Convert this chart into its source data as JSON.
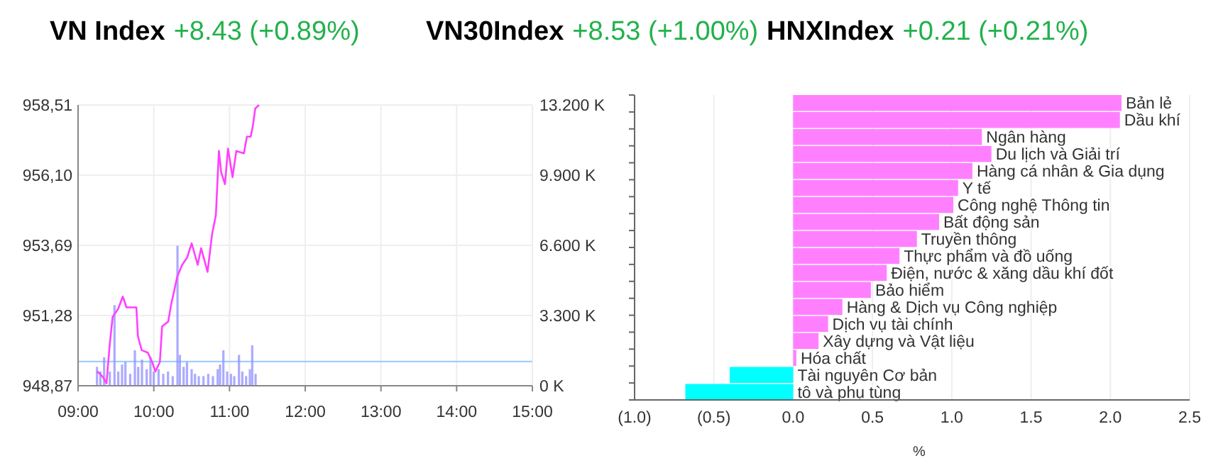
{
  "chart_data": [
    {
      "type": "other",
      "annotations": [
        "VN Index",
        "+8.43 (+0.89%)",
        "VN30Index",
        "+8.53 (+1.00%)",
        "HNXIndex",
        "+0.21 (+0.21%)"
      ]
    },
    {
      "type": "line",
      "grid": true,
      "xlim": [
        9,
        15
      ],
      "xticks": [
        {
          "value": 9,
          "label": "09:00"
        },
        {
          "value": 10,
          "label": "10:00"
        },
        {
          "value": 11,
          "label": "11:00"
        },
        {
          "value": 12,
          "label": "12:00"
        },
        {
          "value": 13,
          "label": "13:00"
        },
        {
          "value": 14,
          "label": "14:00"
        },
        {
          "value": 15,
          "label": "15:00"
        }
      ],
      "ylim": [
        948.87,
        958.51
      ],
      "yticks": [
        {
          "value": 948.87,
          "label": "948,87"
        },
        {
          "value": 951.28,
          "label": "951,28"
        },
        {
          "value": 953.69,
          "label": "953,69"
        },
        {
          "value": 956.1,
          "label": "956,10"
        },
        {
          "value": 958.51,
          "label": "958,51"
        }
      ],
      "y2lim": [
        0,
        13200
      ],
      "y2ticks": [
        {
          "value": 0,
          "label": "0 K"
        },
        {
          "value": 3300,
          "label": "3.300 K"
        },
        {
          "value": 6600,
          "label": "6.600 K"
        },
        {
          "value": 9900,
          "label": "9.900 K"
        },
        {
          "value": 13200,
          "label": "13.200 K"
        }
      ],
      "ref_lines": [
        {
          "axis": "y",
          "value": 949.7,
          "color": "#9fd0ff"
        }
      ],
      "series": [
        {
          "type": "bar",
          "axis": "y2",
          "color": "#8f8fff",
          "x": [
            9.25,
            9.294,
            9.344,
            9.419,
            9.481,
            9.531,
            9.581,
            9.625,
            9.688,
            9.75,
            9.794,
            9.844,
            9.906,
            9.956,
            10.0,
            10.063,
            10.125,
            10.188,
            10.25,
            10.313,
            10.344,
            10.394,
            10.438,
            10.5,
            10.544,
            10.594,
            10.656,
            10.719,
            10.781,
            10.844,
            10.875,
            10.919,
            10.969,
            11.019,
            11.063,
            11.125,
            11.169,
            11.219,
            11.269,
            11.3,
            11.344
          ],
          "values": [
            890,
            670,
            1340,
            670,
            3790,
            670,
            1000,
            1120,
            560,
            1670,
            890,
            1230,
            780,
            1340,
            670,
            780,
            560,
            670,
            450,
            6580,
            1450,
            890,
            1120,
            780,
            560,
            450,
            450,
            560,
            450,
            780,
            1000,
            1670,
            670,
            560,
            450,
            1450,
            670,
            450,
            780,
            1900,
            560
          ]
        },
        {
          "type": "line",
          "axis": "y",
          "color": "#ff40ff",
          "x": [
            9.25,
            9.29,
            9.33,
            9.375,
            9.42,
            9.456,
            9.53,
            9.59,
            9.64,
            9.77,
            9.79,
            9.84,
            9.92,
            9.98,
            10.02,
            10.08,
            10.11,
            10.19,
            10.23,
            10.31,
            10.375,
            10.44,
            10.5,
            10.58,
            10.625,
            10.71,
            10.77,
            10.82,
            10.86,
            10.89,
            10.94,
            10.98,
            11.04,
            11.09,
            11.19,
            11.23,
            11.28,
            11.31,
            11.34,
            11.39
          ],
          "values": [
            949.36,
            949.28,
            949.16,
            948.95,
            950.34,
            951.23,
            951.51,
            951.93,
            951.56,
            951.56,
            950.58,
            950.09,
            950.01,
            949.68,
            949.36,
            949.68,
            950.91,
            951.07,
            951.67,
            952.62,
            953.02,
            953.27,
            953.76,
            953.02,
            953.59,
            952.78,
            954.08,
            954.73,
            956.93,
            956.2,
            955.79,
            957.01,
            956.03,
            956.93,
            956.85,
            957.42,
            957.42,
            957.82,
            958.39,
            958.51
          ]
        }
      ]
    },
    {
      "type": "bar",
      "orientation": "horizontal",
      "grid": "x",
      "xlabel": "%",
      "xlim": [
        -1.0,
        2.5
      ],
      "xticks": [
        {
          "value": -1,
          "label": "(1.0)"
        },
        {
          "value": -0.5,
          "label": "(0.5)"
        },
        {
          "value": 0,
          "label": "0.0"
        },
        {
          "value": 0.5,
          "label": "0.5"
        },
        {
          "value": 1,
          "label": "1.0"
        },
        {
          "value": 1.5,
          "label": "1.5"
        },
        {
          "value": 2,
          "label": "2.0"
        },
        {
          "value": 2.5,
          "label": "2.5"
        }
      ],
      "categories": [
        "Bản lẻ",
        "Dầu khí",
        "Ngân hàng",
        "Du lịch và Giải trí",
        "Hàng cá nhân & Gia dụng",
        "Y tế",
        "Công nghệ Thông tin",
        "Bất động sản",
        "Truyền thông",
        "Thực phẩm và đồ uống",
        "Điện, nước & xăng dầu khí đốt",
        "Bảo hiểm",
        "Hàng & Dịch vụ Công nghiệp",
        "Dịch vụ tài chính",
        "Xây dựng và Vật liệu",
        "Hóa chất",
        "Tài nguyên Cơ bản",
        "tô và phụ tùng"
      ],
      "values": [
        2.07,
        2.06,
        1.19,
        1.25,
        1.13,
        1.04,
        1.01,
        0.92,
        0.78,
        0.67,
        0.59,
        0.49,
        0.31,
        0.22,
        0.16,
        0.02,
        -0.4,
        -0.68
      ],
      "colors": [
        "#ff80ff",
        "#ff80ff",
        "#ff80ff",
        "#ff80ff",
        "#ff80ff",
        "#ff80ff",
        "#ff80ff",
        "#ff80ff",
        "#ff80ff",
        "#ff80ff",
        "#ff80ff",
        "#ff80ff",
        "#ff80ff",
        "#ff80ff",
        "#ff80ff",
        "#ff80ff",
        "#00ffff",
        "#00ffff"
      ]
    }
  ]
}
